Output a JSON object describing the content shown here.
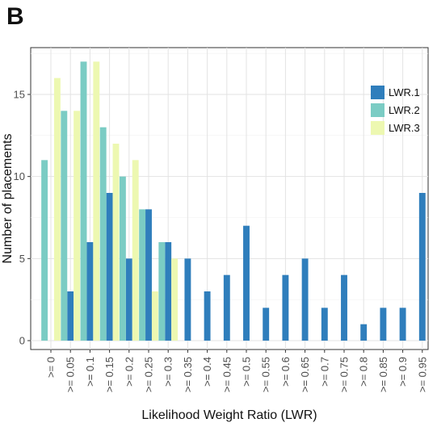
{
  "panel_label": "B",
  "colors": {
    "LWR.1": "#2f7ebc",
    "LWR.2": "#7bccc4",
    "LWR.3": "#edf8b1"
  },
  "chart_data": {
    "type": "bar",
    "xlabel": "Likelihood Weight Ratio (LWR)",
    "ylabel": "Number of placements",
    "ylim": [
      0,
      17.5
    ],
    "yticks": [
      0,
      5,
      10,
      15
    ],
    "grid": true,
    "legend_position": "top-right",
    "categories": [
      ">= 0",
      ">= 0.05",
      ">= 0.1",
      ">= 0.15",
      ">= 0.2",
      ">= 0.25",
      ">= 0.3",
      ">= 0.35",
      ">= 0.4",
      ">= 0.45",
      ">= 0.5",
      ">= 0.55",
      ">= 0.6",
      ">= 0.65",
      ">= 0.7",
      ">= 0.75",
      ">= 0.8",
      ">= 0.85",
      ">= 0.9",
      ">= 0.95"
    ],
    "series": [
      {
        "name": "LWR.1",
        "values": [
          0,
          3,
          6,
          9,
          5,
          8,
          6,
          5,
          3,
          4,
          7,
          2,
          4,
          5,
          2,
          4,
          1,
          2,
          2,
          9
        ]
      },
      {
        "name": "LWR.2",
        "values": [
          11,
          14,
          17,
          13,
          10,
          8,
          6,
          0,
          0,
          0,
          0,
          0,
          0,
          0,
          0,
          0,
          0,
          0,
          0,
          0
        ]
      },
      {
        "name": "LWR.3",
        "values": [
          16,
          14,
          17,
          12,
          11,
          3,
          5,
          0,
          0,
          0,
          0,
          0,
          0,
          0,
          0,
          0,
          0,
          0,
          0,
          0
        ]
      }
    ]
  }
}
